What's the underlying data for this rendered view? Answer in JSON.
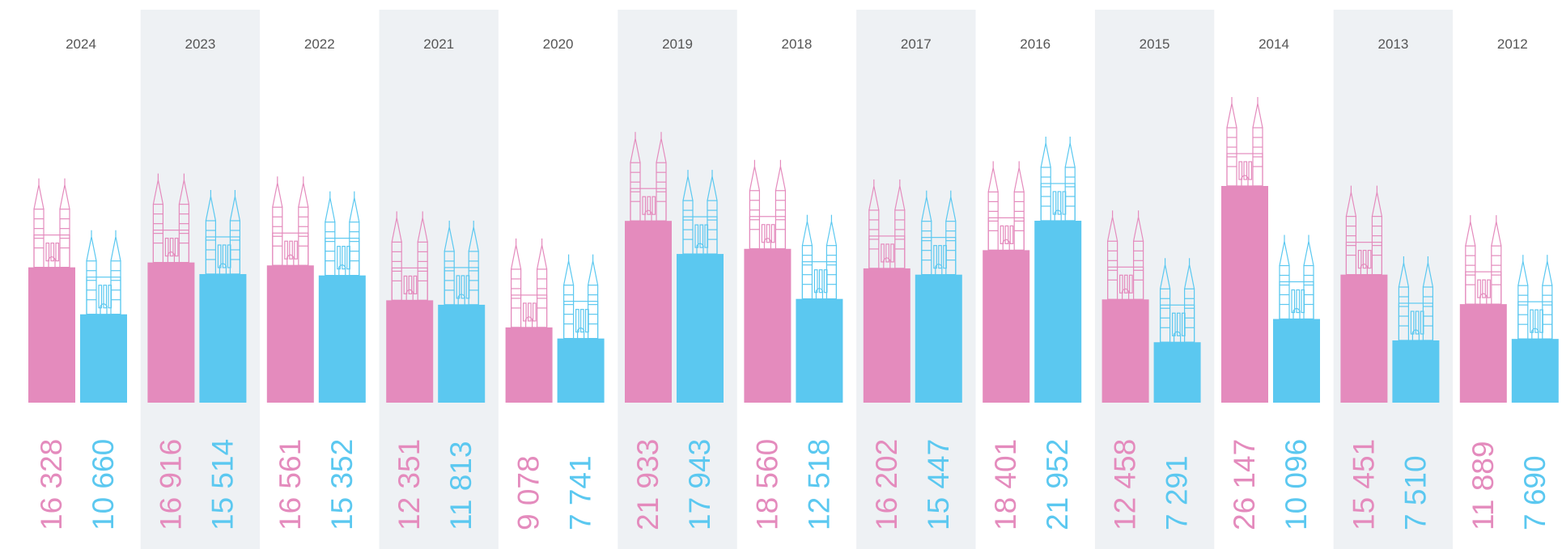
{
  "chart_data": {
    "type": "bar",
    "categories": [
      "2024",
      "2023",
      "2022",
      "2021",
      "2020",
      "2019",
      "2018",
      "2017",
      "2016",
      "2015",
      "2014",
      "2013",
      "2012"
    ],
    "series": [
      {
        "color": "#e48bbd",
        "values": [
          16328,
          16916,
          16561,
          12351,
          9078,
          21933,
          18560,
          16202,
          18401,
          12458,
          26147,
          15451,
          11889
        ],
        "value_labels": [
          "16 328",
          "16 916",
          "16 561",
          "12 351",
          "9 078",
          "21 933",
          "18 560",
          "16 202",
          "18 401",
          "12 458",
          "26 147",
          "15 451",
          "11 889"
        ]
      },
      {
        "color": "#5bc8f0",
        "values": [
          10660,
          15514,
          15352,
          11813,
          7741,
          17943,
          12518,
          15447,
          21952,
          7291,
          10096,
          7510,
          7690
        ],
        "value_labels": [
          "10 660",
          "15 514",
          "15 352",
          "11 813",
          "7 741",
          "17 943",
          "12 518",
          "15 447",
          "21 952",
          "7 291",
          "10 096",
          "7 510",
          "7 690"
        ]
      }
    ]
  }
}
